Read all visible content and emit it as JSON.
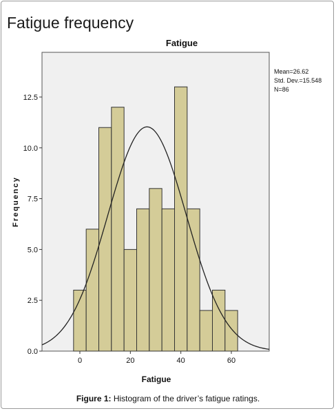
{
  "page": {
    "title": "Fatigue frequency",
    "caption_label": "Figure 1:",
    "caption_text": " Histogram of the driver’s fatigue ratings."
  },
  "stats": {
    "mean": "Mean=26.62",
    "std": "Std. Dev.=15.548",
    "n": "N=86"
  },
  "chart_data": {
    "type": "bar",
    "title": "Fatigue",
    "xlabel": "Fatigue",
    "ylabel": "Frequency",
    "bin_width": 5,
    "bins": [
      {
        "start": -2.5,
        "end": 2.5,
        "count": 3
      },
      {
        "start": 2.5,
        "end": 7.5,
        "count": 6
      },
      {
        "start": 7.5,
        "end": 12.5,
        "count": 11
      },
      {
        "start": 12.5,
        "end": 17.5,
        "count": 12
      },
      {
        "start": 17.5,
        "end": 22.5,
        "count": 5
      },
      {
        "start": 22.5,
        "end": 27.5,
        "count": 7
      },
      {
        "start": 27.5,
        "end": 32.5,
        "count": 8
      },
      {
        "start": 32.5,
        "end": 37.5,
        "count": 7
      },
      {
        "start": 37.5,
        "end": 42.5,
        "count": 13
      },
      {
        "start": 42.5,
        "end": 47.5,
        "count": 7
      },
      {
        "start": 47.5,
        "end": 52.5,
        "count": 2
      },
      {
        "start": 52.5,
        "end": 57.5,
        "count": 3
      },
      {
        "start": 57.5,
        "end": 62.5,
        "count": 2
      }
    ],
    "xlim": [
      -15,
      75
    ],
    "ylim": [
      0,
      14.7
    ],
    "x_ticks": [
      0,
      20,
      40,
      60
    ],
    "x_tick_labels": [
      "0",
      "20",
      "40",
      "60"
    ],
    "y_ticks": [
      0,
      2.5,
      5,
      7.5,
      10,
      12.5
    ],
    "y_tick_labels": [
      "0.0",
      "2.5",
      "5.0",
      "7.5",
      "10.0",
      "12.5"
    ],
    "normal_curve": {
      "mean": 26.62,
      "std": 15.548,
      "n": 86
    },
    "grid": false,
    "colors": {
      "bar_fill": "#d4cc98",
      "bar_stroke": "#333333",
      "plot_bg": "#f0f0f0",
      "curve": "#222222"
    }
  }
}
